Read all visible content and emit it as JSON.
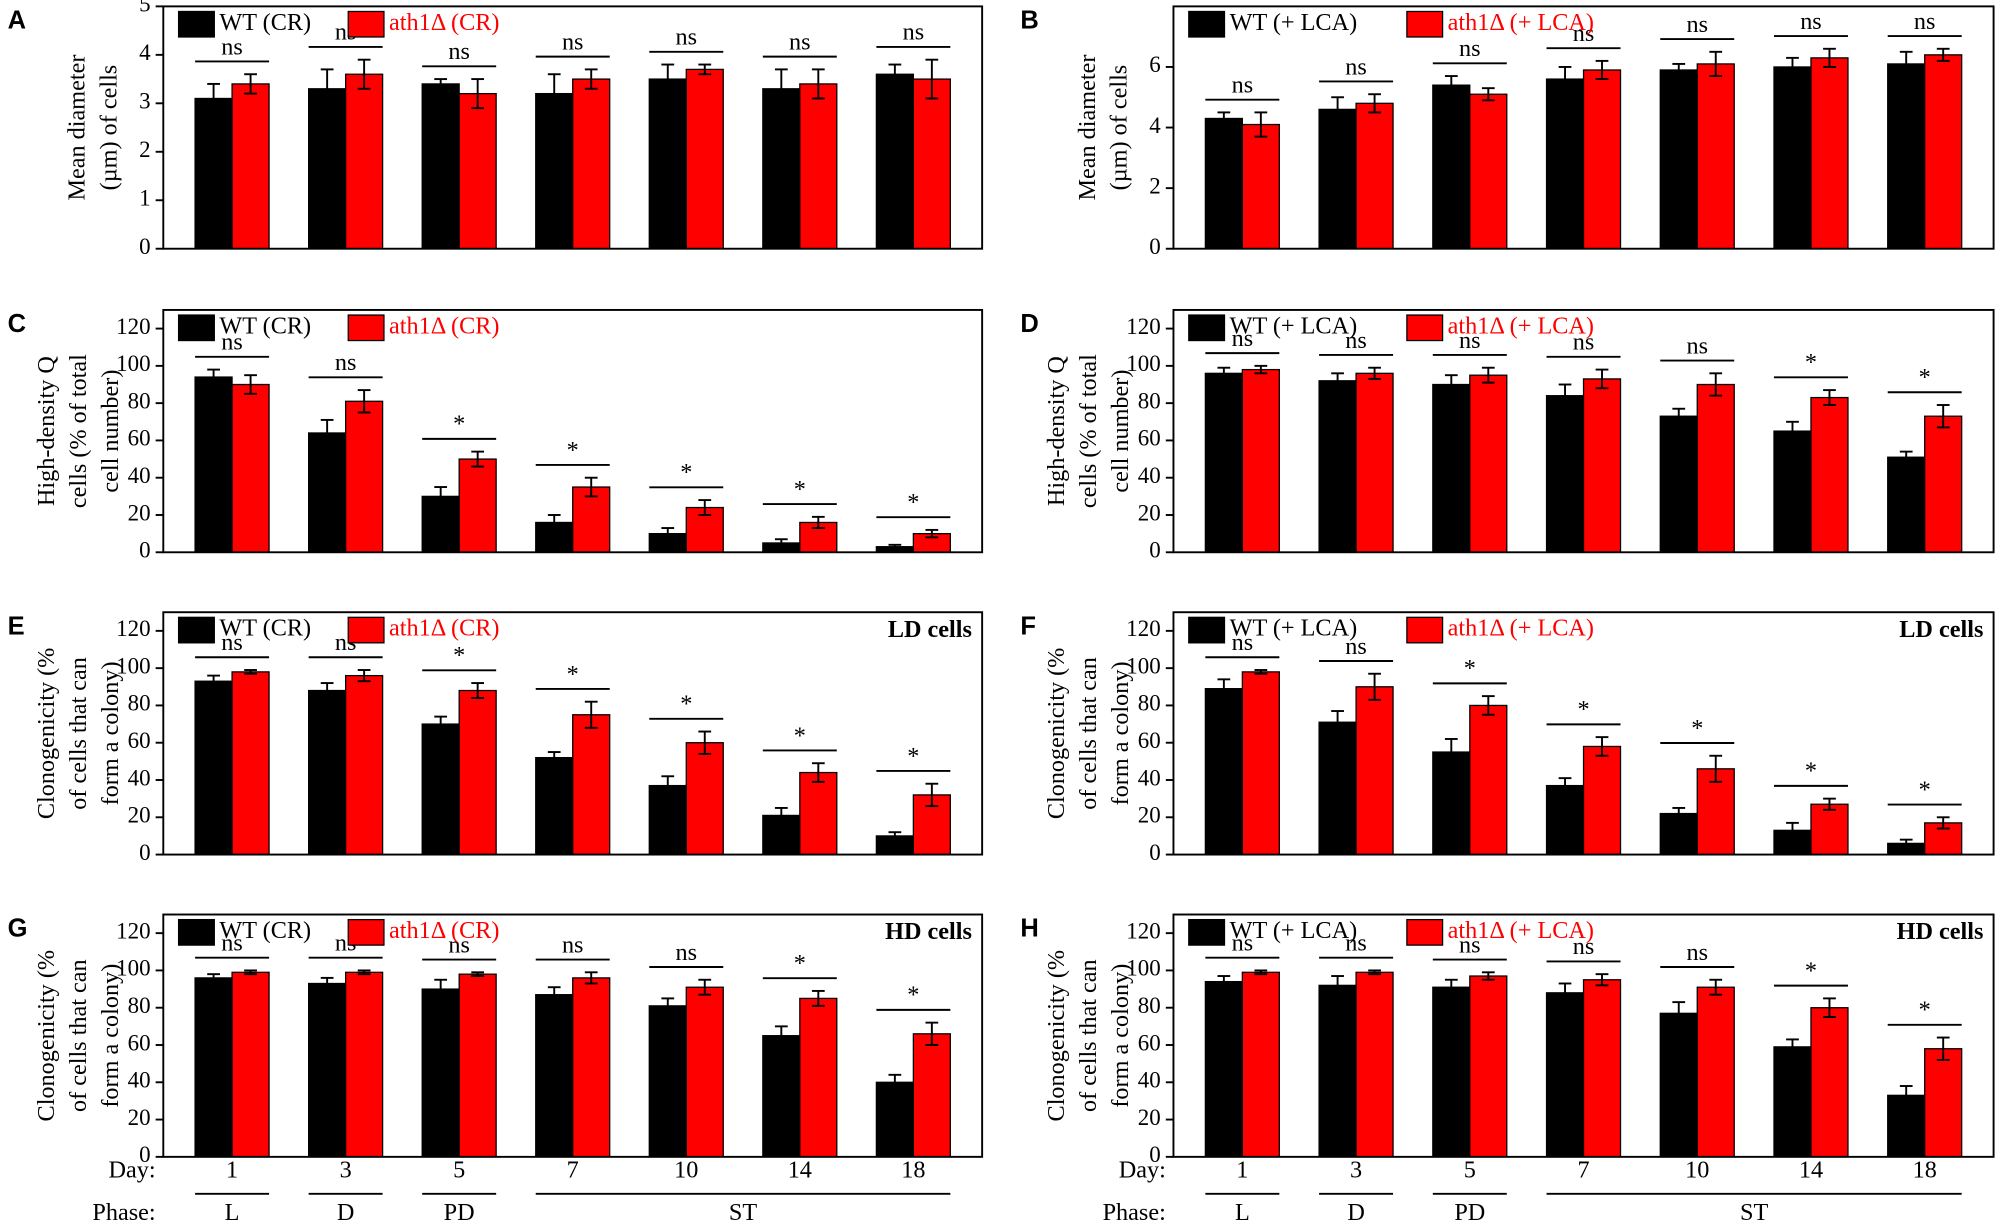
{
  "chart_data": [
    {
      "type": "bar",
      "panel": "A",
      "ylabel": [
        "Mean diameter",
        "(µm) of cells"
      ],
      "ylim": [
        0,
        5
      ],
      "yticks": [
        0,
        1,
        2,
        3,
        4,
        5
      ],
      "legend": "upper left",
      "series": [
        {
          "name": "WT (CR)",
          "color": "#000000",
          "values": [
            3.1,
            3.3,
            3.4,
            3.2,
            3.5,
            3.3,
            3.6
          ],
          "errors": [
            0.3,
            0.4,
            0.1,
            0.4,
            0.3,
            0.4,
            0.2
          ]
        },
        {
          "name": "ath1Δ (CR)",
          "color": "#ff0000",
          "values": [
            3.4,
            3.6,
            3.2,
            3.5,
            3.7,
            3.4,
            3.5
          ],
          "errors": [
            0.2,
            0.3,
            0.3,
            0.2,
            0.1,
            0.3,
            0.4
          ]
        }
      ],
      "significance": [
        "ns",
        "ns",
        "ns",
        "ns",
        "ns",
        "ns",
        "ns"
      ]
    },
    {
      "type": "bar",
      "panel": "B",
      "ylabel": [
        "Mean diameter",
        "(µm) of cells"
      ],
      "ylim": [
        0,
        8
      ],
      "yticks": [
        0,
        2,
        4,
        6
      ],
      "legend": "upper left",
      "series": [
        {
          "name": "WT (+ LCA)",
          "color": "#000000",
          "values": [
            4.3,
            4.6,
            5.4,
            5.6,
            5.9,
            6.0,
            6.1
          ],
          "errors": [
            0.2,
            0.4,
            0.3,
            0.4,
            0.2,
            0.3,
            0.4
          ]
        },
        {
          "name": "ath1Δ (+ LCA)",
          "color": "#ff0000",
          "values": [
            4.1,
            4.8,
            5.1,
            5.9,
            6.1,
            6.3,
            6.4
          ],
          "errors": [
            0.4,
            0.3,
            0.2,
            0.3,
            0.4,
            0.3,
            0.2
          ]
        }
      ],
      "significance": [
        "ns",
        "ns",
        "ns",
        "ns",
        "ns",
        "ns",
        "ns"
      ]
    },
    {
      "type": "bar",
      "panel": "C",
      "ylabel": [
        "High-density Q",
        "cells  (% of total",
        "cell number)"
      ],
      "ylim": [
        0,
        130
      ],
      "yticks": [
        0,
        20,
        40,
        60,
        80,
        100,
        120
      ],
      "legend": "upper left",
      "series": [
        {
          "name": "WT (CR)",
          "color": "#000000",
          "values": [
            94,
            64,
            30,
            16,
            10,
            5,
            3
          ],
          "errors": [
            4,
            7,
            5,
            4,
            3,
            2,
            1
          ]
        },
        {
          "name": "ath1Δ (CR)",
          "color": "#ff0000",
          "values": [
            90,
            81,
            50,
            35,
            24,
            16,
            10
          ],
          "errors": [
            5,
            6,
            4,
            5,
            4,
            3,
            2
          ]
        }
      ],
      "significance": [
        "ns",
        "ns",
        "*",
        "*",
        "*",
        "*",
        "*"
      ]
    },
    {
      "type": "bar",
      "panel": "D",
      "ylabel": [
        "High-density Q",
        "cells  (% of total",
        "cell number)"
      ],
      "ylim": [
        0,
        130
      ],
      "yticks": [
        0,
        20,
        40,
        60,
        80,
        100,
        120
      ],
      "legend": "upper left",
      "series": [
        {
          "name": "WT (+ LCA)",
          "color": "#000000",
          "values": [
            96,
            92,
            90,
            84,
            73,
            65,
            51
          ],
          "errors": [
            3,
            4,
            5,
            6,
            4,
            5,
            3
          ]
        },
        {
          "name": "ath1Δ (+ LCA)",
          "color": "#ff0000",
          "values": [
            98,
            96,
            95,
            93,
            90,
            83,
            73
          ],
          "errors": [
            2,
            3,
            4,
            5,
            6,
            4,
            6
          ]
        }
      ],
      "significance": [
        "ns",
        "ns",
        "ns",
        "ns",
        "ns",
        "*",
        "*"
      ]
    },
    {
      "type": "bar",
      "panel": "E",
      "ylabel": [
        "Clonogenicity (%",
        "of cells that can",
        "form a colony)"
      ],
      "ylim": [
        0,
        130
      ],
      "yticks": [
        0,
        20,
        40,
        60,
        80,
        100,
        120
      ],
      "legend": "upper left",
      "annotation": "LD cells",
      "series": [
        {
          "name": "WT (CR)",
          "color": "#000000",
          "values": [
            93,
            88,
            70,
            52,
            37,
            21,
            10
          ],
          "errors": [
            3,
            4,
            4,
            3,
            5,
            4,
            2
          ]
        },
        {
          "name": "ath1Δ (CR)",
          "color": "#ff0000",
          "values": [
            98,
            96,
            88,
            75,
            60,
            44,
            32
          ],
          "errors": [
            1,
            3,
            4,
            7,
            6,
            5,
            6
          ]
        }
      ],
      "significance": [
        "ns",
        "ns",
        "*",
        "*",
        "*",
        "*",
        "*"
      ]
    },
    {
      "type": "bar",
      "panel": "F",
      "ylabel": [
        "Clonogenicity (%",
        "of cells that can",
        "form a colony)"
      ],
      "ylim": [
        0,
        130
      ],
      "yticks": [
        0,
        20,
        40,
        60,
        80,
        100,
        120
      ],
      "legend": "upper left",
      "annotation": "LD cells",
      "series": [
        {
          "name": "WT (+ LCA)",
          "color": "#000000",
          "values": [
            89,
            71,
            55,
            37,
            22,
            13,
            6
          ],
          "errors": [
            5,
            6,
            7,
            4,
            3,
            4,
            2
          ]
        },
        {
          "name": "ath1Δ (+ LCA)",
          "color": "#ff0000",
          "values": [
            98,
            90,
            80,
            58,
            46,
            27,
            17
          ],
          "errors": [
            1,
            7,
            5,
            5,
            7,
            3,
            3
          ]
        }
      ],
      "significance": [
        "ns",
        "ns",
        "*",
        "*",
        "*",
        "*",
        "*"
      ]
    },
    {
      "type": "bar",
      "panel": "G",
      "ylabel": [
        "Clonogenicity (%",
        "of cells that can",
        "form a colony)"
      ],
      "ylim": [
        0,
        130
      ],
      "yticks": [
        0,
        20,
        40,
        60,
        80,
        100,
        120
      ],
      "legend": "upper left",
      "annotation": "HD cells",
      "series": [
        {
          "name": "WT (CR)",
          "color": "#000000",
          "values": [
            96,
            93,
            90,
            87,
            81,
            65,
            40
          ],
          "errors": [
            2,
            3,
            5,
            4,
            4,
            5,
            4
          ]
        },
        {
          "name": "ath1Δ (CR)",
          "color": "#ff0000",
          "values": [
            99,
            99,
            98,
            96,
            91,
            85,
            66
          ],
          "errors": [
            1,
            1,
            1,
            3,
            4,
            4,
            6
          ]
        }
      ],
      "significance": [
        "ns",
        "ns",
        "ns",
        "ns",
        "ns",
        "*",
        "*"
      ],
      "xlabel": "Day:",
      "categories": [
        "1",
        "3",
        "5",
        "7",
        "10",
        "14",
        "18"
      ],
      "phase_label": "Phase:",
      "phases": [
        "L",
        "D",
        "PD",
        "ST",
        null,
        null,
        null
      ]
    },
    {
      "type": "bar",
      "panel": "H",
      "ylabel": [
        "Clonogenicity (%",
        "of cells that can",
        "form a colony)"
      ],
      "ylim": [
        0,
        130
      ],
      "yticks": [
        0,
        20,
        40,
        60,
        80,
        100,
        120
      ],
      "legend": "upper left",
      "annotation": "HD cells",
      "series": [
        {
          "name": "WT (+ LCA)",
          "color": "#000000",
          "values": [
            94,
            92,
            91,
            88,
            77,
            59,
            33
          ],
          "errors": [
            3,
            5,
            4,
            5,
            6,
            4,
            5
          ]
        },
        {
          "name": "ath1Δ (+ LCA)",
          "color": "#ff0000",
          "values": [
            99,
            99,
            97,
            95,
            91,
            80,
            58
          ],
          "errors": [
            1,
            1,
            2,
            3,
            4,
            5,
            6
          ]
        }
      ],
      "significance": [
        "ns",
        "ns",
        "ns",
        "ns",
        "ns",
        "*",
        "*"
      ],
      "xlabel": "Day:",
      "categories": [
        "1",
        "3",
        "5",
        "7",
        "10",
        "14",
        "18"
      ],
      "phase_label": "Phase:",
      "phases": [
        "L",
        "D",
        "PD",
        "ST",
        null,
        null,
        null
      ]
    }
  ]
}
